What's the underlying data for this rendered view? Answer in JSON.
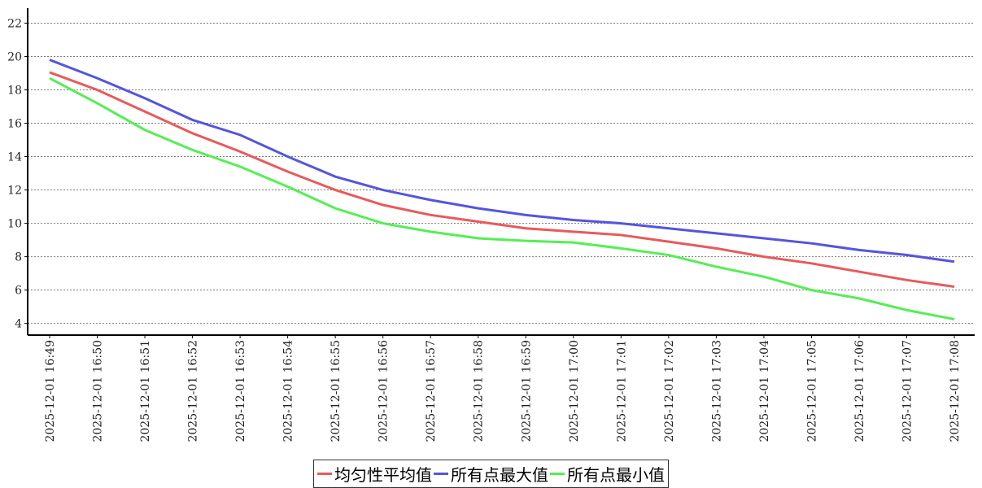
{
  "chart_data": {
    "type": "line",
    "categories": [
      "2025-12-01 16:49",
      "2025-12-01 16:50",
      "2025-12-01 16:51",
      "2025-12-01 16:52",
      "2025-12-01 16:53",
      "2025-12-01 16:54",
      "2025-12-01 16:55",
      "2025-12-01 16:56",
      "2025-12-01 16:57",
      "2025-12-01 16:58",
      "2025-12-01 16:59",
      "2025-12-01 17:00",
      "2025-12-01 17:01",
      "2025-12-01 17:02",
      "2025-12-01 17:03",
      "2025-12-01 17:04",
      "2025-12-01 17:05",
      "2025-12-01 17:06",
      "2025-12-01 17:07",
      "2025-12-01 17:08"
    ],
    "series": [
      {
        "name": "均匀性平均值",
        "color": "#e85a5a",
        "values": [
          19.05,
          18.0,
          16.7,
          15.4,
          14.3,
          13.1,
          12.0,
          11.1,
          10.5,
          10.1,
          9.7,
          9.5,
          9.3,
          8.9,
          8.5,
          8.0,
          7.6,
          7.1,
          6.6,
          6.2
        ]
      },
      {
        "name": "所有点最大值",
        "color": "#5555dd",
        "values": [
          19.8,
          18.7,
          17.5,
          16.2,
          15.3,
          14.0,
          12.8,
          12.0,
          11.4,
          10.9,
          10.5,
          10.2,
          10.0,
          9.7,
          9.4,
          9.1,
          8.8,
          8.4,
          8.1,
          7.7
        ]
      },
      {
        "name": "所有点最小值",
        "color": "#55ee55",
        "values": [
          18.7,
          17.2,
          15.6,
          14.4,
          13.4,
          12.2,
          10.9,
          10.0,
          9.5,
          9.1,
          8.95,
          8.85,
          8.5,
          8.1,
          7.4,
          6.8,
          6.0,
          5.5,
          4.8,
          4.25
        ]
      }
    ],
    "ylim": [
      3.3,
      22.9
    ],
    "yticks": [
      4,
      6,
      8,
      10,
      12,
      14,
      16,
      18,
      20,
      22
    ],
    "grid": true,
    "legend": "bottom"
  }
}
